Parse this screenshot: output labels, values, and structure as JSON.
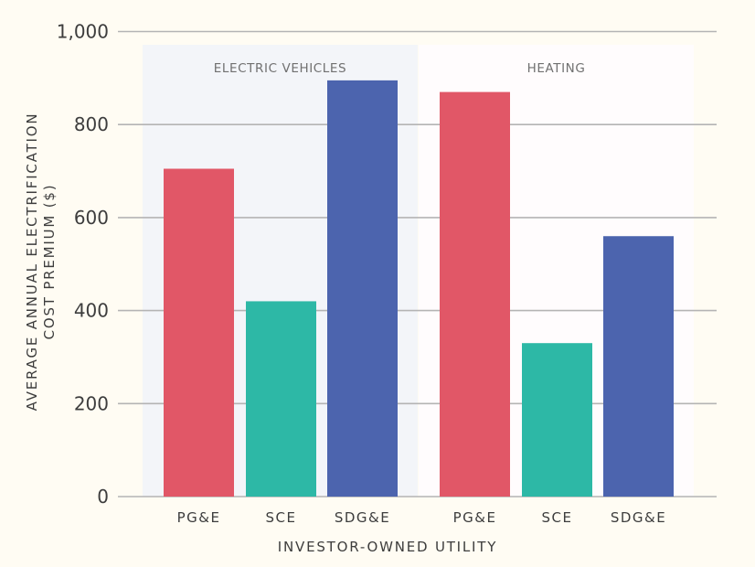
{
  "chart_data": {
    "type": "bar",
    "title": "",
    "xlabel": "INVESTOR-OWNED UTILITY",
    "ylabel_lines": [
      "AVERAGE ANNUAL ELECTRIFICATION",
      "COST PREMIUM ($)"
    ],
    "ylim": [
      0,
      1000
    ],
    "yticks": [
      0,
      200,
      400,
      600,
      800,
      1000
    ],
    "ytick_labels": [
      "0",
      "200",
      "400",
      "600",
      "800",
      "1,000"
    ],
    "grid": true,
    "groups": [
      {
        "name": "ELECTRIC VEHICLES",
        "background": "#f3f5f9",
        "bars": [
          {
            "category": "PG&E",
            "value": 705,
            "color": "#e15767"
          },
          {
            "category": "SCE",
            "value": 420,
            "color": "#2db8a6"
          },
          {
            "category": "SDG&E",
            "value": 895,
            "color": "#4c64ae"
          }
        ]
      },
      {
        "name": "HEATING",
        "background": "#fffcfd",
        "bars": [
          {
            "category": "PG&E",
            "value": 870,
            "color": "#e15767"
          },
          {
            "category": "SCE",
            "value": 330,
            "color": "#2db8a6"
          },
          {
            "category": "SDG&E",
            "value": 560,
            "color": "#4c64ae"
          }
        ]
      }
    ],
    "colors": {
      "background": "#fffcf3",
      "gridline": "#b4b4b4",
      "text": "#3d3d3d",
      "group_label": "#707070"
    }
  }
}
